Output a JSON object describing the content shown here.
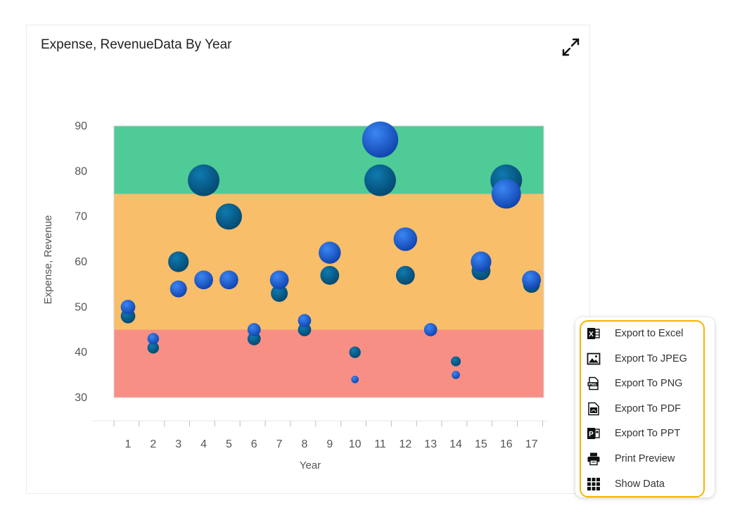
{
  "chart_data": {
    "type": "bubble",
    "title": "Expense, RevenueData By Year",
    "xlabel": "Year",
    "ylabel": "Expense, Revenue",
    "categories": [
      "1",
      "2",
      "3",
      "4",
      "5",
      "6",
      "7",
      "8",
      "9",
      "10",
      "11",
      "12",
      "13",
      "14",
      "15",
      "16",
      "17"
    ],
    "ylim": [
      30,
      90
    ],
    "yticks": [
      30,
      40,
      50,
      60,
      70,
      80,
      90
    ],
    "bands": [
      {
        "from": 30,
        "to": 45,
        "color": "#f78f85"
      },
      {
        "from": 45,
        "to": 75,
        "color": "#f9be6a"
      },
      {
        "from": 75,
        "to": 90,
        "color": "#4ecb96"
      }
    ],
    "series": [
      {
        "name": "Expense",
        "color": "#065b8a",
        "points": [
          {
            "x": 1,
            "y": 48,
            "size": 2
          },
          {
            "x": 2,
            "y": 41,
            "size": 1
          },
          {
            "x": 3,
            "y": 60,
            "size": 5
          },
          {
            "x": 4,
            "y": 78,
            "size": 14
          },
          {
            "x": 5,
            "y": 70,
            "size": 9
          },
          {
            "x": 6,
            "y": 43,
            "size": 1.5
          },
          {
            "x": 7,
            "y": 53,
            "size": 3
          },
          {
            "x": 8,
            "y": 45,
            "size": 1.5
          },
          {
            "x": 9,
            "y": 57,
            "size": 4
          },
          {
            "x": 10,
            "y": 40,
            "size": 1
          },
          {
            "x": 11,
            "y": 78,
            "size": 14
          },
          {
            "x": 12,
            "y": 57,
            "size": 4
          },
          {
            "x": 14,
            "y": 38,
            "size": 0.6
          },
          {
            "x": 15,
            "y": 58,
            "size": 4
          },
          {
            "x": 16,
            "y": 78,
            "size": 14
          },
          {
            "x": 17,
            "y": 55,
            "size": 3
          }
        ]
      },
      {
        "name": "Revenue",
        "color": "#1e63d8",
        "points": [
          {
            "x": 1,
            "y": 50,
            "size": 2
          },
          {
            "x": 2,
            "y": 43,
            "size": 1
          },
          {
            "x": 3,
            "y": 54,
            "size": 3
          },
          {
            "x": 4,
            "y": 56,
            "size": 4
          },
          {
            "x": 5,
            "y": 56,
            "size": 4
          },
          {
            "x": 6,
            "y": 45,
            "size": 1.5
          },
          {
            "x": 7,
            "y": 56,
            "size": 4
          },
          {
            "x": 8,
            "y": 47,
            "size": 1.5
          },
          {
            "x": 9,
            "y": 62,
            "size": 6
          },
          {
            "x": 10,
            "y": 34,
            "size": 0.2
          },
          {
            "x": 11,
            "y": 87,
            "size": 19
          },
          {
            "x": 12,
            "y": 65,
            "size": 7
          },
          {
            "x": 13,
            "y": 45,
            "size": 1.5
          },
          {
            "x": 14,
            "y": 35,
            "size": 0.3
          },
          {
            "x": 15,
            "y": 60,
            "size": 5
          },
          {
            "x": 16,
            "y": 75,
            "size": 12
          },
          {
            "x": 17,
            "y": 56,
            "size": 4
          }
        ]
      }
    ]
  },
  "toolbar": {
    "expand_icon": "expand-icon"
  },
  "menu": {
    "items": [
      {
        "label": "Export to Excel",
        "icon": "excel-icon"
      },
      {
        "label": "Export To JPEG",
        "icon": "image-icon"
      },
      {
        "label": "Export To PNG",
        "icon": "png-icon"
      },
      {
        "label": "Export To PDF",
        "icon": "pdf-icon"
      },
      {
        "label": "Export To PPT",
        "icon": "ppt-icon"
      },
      {
        "label": "Print Preview",
        "icon": "printer-icon"
      },
      {
        "label": "Show Data",
        "icon": "grid-icon"
      }
    ]
  },
  "colors": {
    "text": "#222222",
    "axis_text": "#555555",
    "menu_border": "#f4b400",
    "menu_icon": "#111111"
  }
}
